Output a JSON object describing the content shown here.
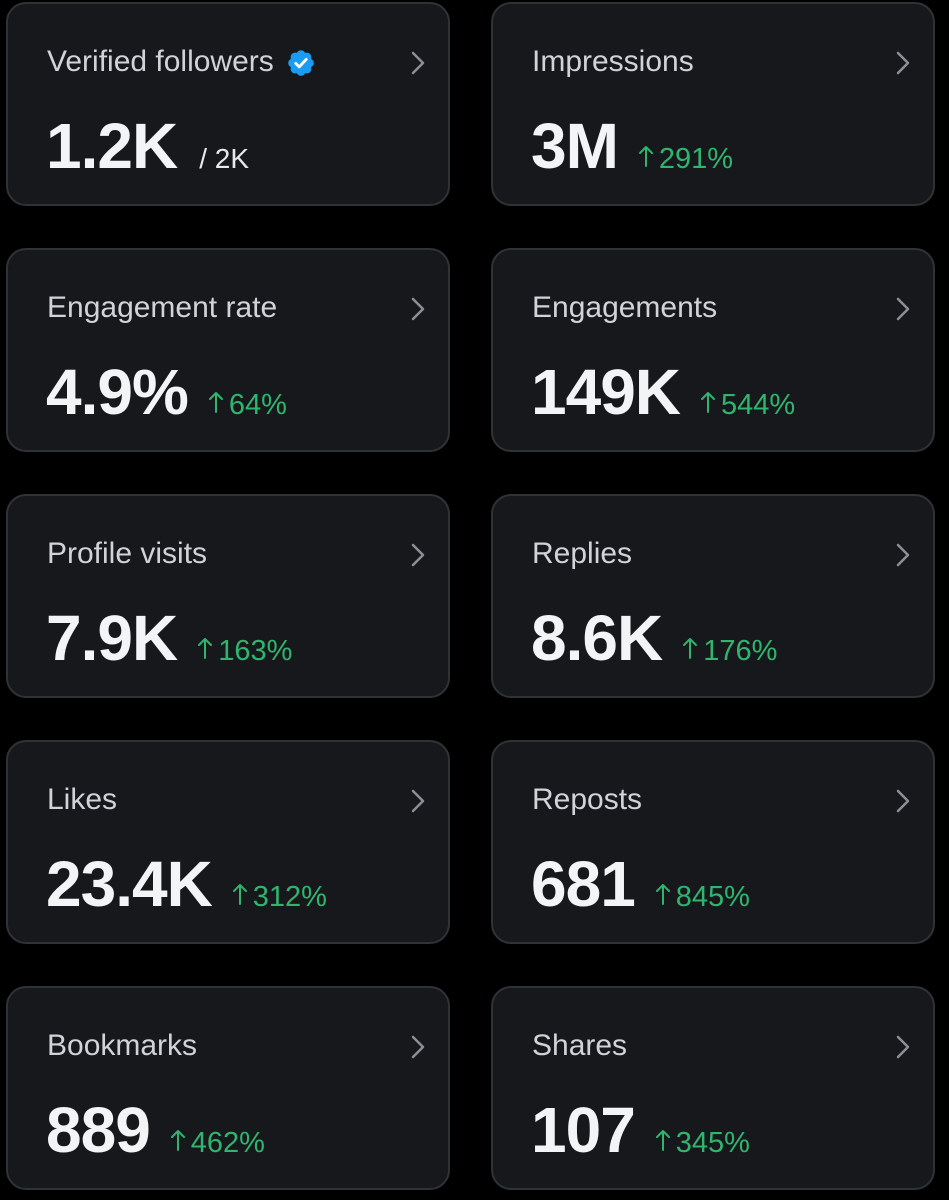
{
  "cards": [
    {
      "title": "Verified followers",
      "value": "1.2K",
      "suffix": "/ 2K",
      "change": "",
      "verified": true
    },
    {
      "title": "Impressions",
      "value": "3M",
      "suffix": "",
      "change": "291%"
    },
    {
      "title": "Engagement rate",
      "value": "4.9%",
      "suffix": "",
      "change": "64%"
    },
    {
      "title": "Engagements",
      "value": "149K",
      "suffix": "",
      "change": "544%"
    },
    {
      "title": "Profile visits",
      "value": "7.9K",
      "suffix": "",
      "change": "163%"
    },
    {
      "title": "Replies",
      "value": "8.6K",
      "suffix": "",
      "change": "176%"
    },
    {
      "title": "Likes",
      "value": "23.4K",
      "suffix": "",
      "change": "312%"
    },
    {
      "title": "Reposts",
      "value": "681",
      "suffix": "",
      "change": "845%"
    },
    {
      "title": "Bookmarks",
      "value": "889",
      "suffix": "",
      "change": "462%"
    },
    {
      "title": "Shares",
      "value": "107",
      "suffix": "",
      "change": "345%"
    }
  ],
  "colors": {
    "background": "#000000",
    "card": "#16181c",
    "card_border": "#2f3336",
    "positive_change": "#2fb56e",
    "verified_badge": "#1d9bf0"
  },
  "icons": {
    "verified": "verified-badge-icon",
    "chevron": "chevron-right-icon",
    "trend": "arrow-up-icon"
  }
}
